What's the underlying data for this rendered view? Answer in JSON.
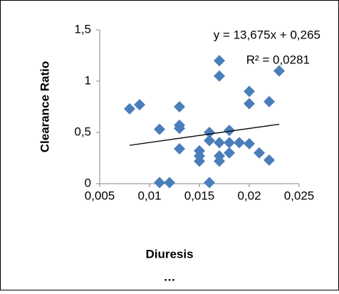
{
  "chart_data": {
    "type": "scatter",
    "y_label": "Clearance Ratio",
    "x_label": "Diuresis",
    "x_label_note": "…",
    "x": [
      0.008,
      0.009,
      0.011,
      0.011,
      0.012,
      0.013,
      0.013,
      0.013,
      0.013,
      0.015,
      0.015,
      0.015,
      0.016,
      0.016,
      0.016,
      0.017,
      0.017,
      0.017,
      0.017,
      0.017,
      0.018,
      0.018,
      0.018,
      0.019,
      0.02,
      0.02,
      0.02,
      0.021,
      0.022,
      0.022,
      0.023
    ],
    "series": [
      {
        "name": "Clearance Ratio",
        "color": "#4a7ebb",
        "values": [
          0.73,
          0.77,
          0.53,
          0.01,
          0.01,
          0.75,
          0.57,
          0.54,
          0.34,
          0.22,
          0.27,
          0.32,
          0.5,
          0.42,
          0.01,
          1.2,
          1.05,
          0.4,
          0.27,
          0.22,
          0.52,
          0.4,
          0.3,
          0.4,
          0.9,
          0.78,
          0.39,
          0.3,
          0.8,
          0.23,
          1.1
        ]
      }
    ],
    "trendline": {
      "slope": 13.675,
      "intercept": 0.265,
      "equation": "y = 13,675x + 0,265",
      "r_squared": "R² = 0,0281",
      "color": "#000000"
    },
    "xlim": [
      0.005,
      0.025
    ],
    "xticks": [
      {
        "value": 0.005,
        "label": "0,005"
      },
      {
        "value": 0.01,
        "label": "0,01"
      },
      {
        "value": 0.015,
        "label": "0,015"
      },
      {
        "value": 0.02,
        "label": "0,02"
      },
      {
        "value": 0.025,
        "label": "0,025"
      }
    ],
    "ylim": [
      0,
      1.5
    ],
    "yticks": [
      0,
      {
        "value": 0.5,
        "label": "0,5"
      },
      1,
      {
        "value": 1.5,
        "label": "1,5"
      }
    ]
  }
}
